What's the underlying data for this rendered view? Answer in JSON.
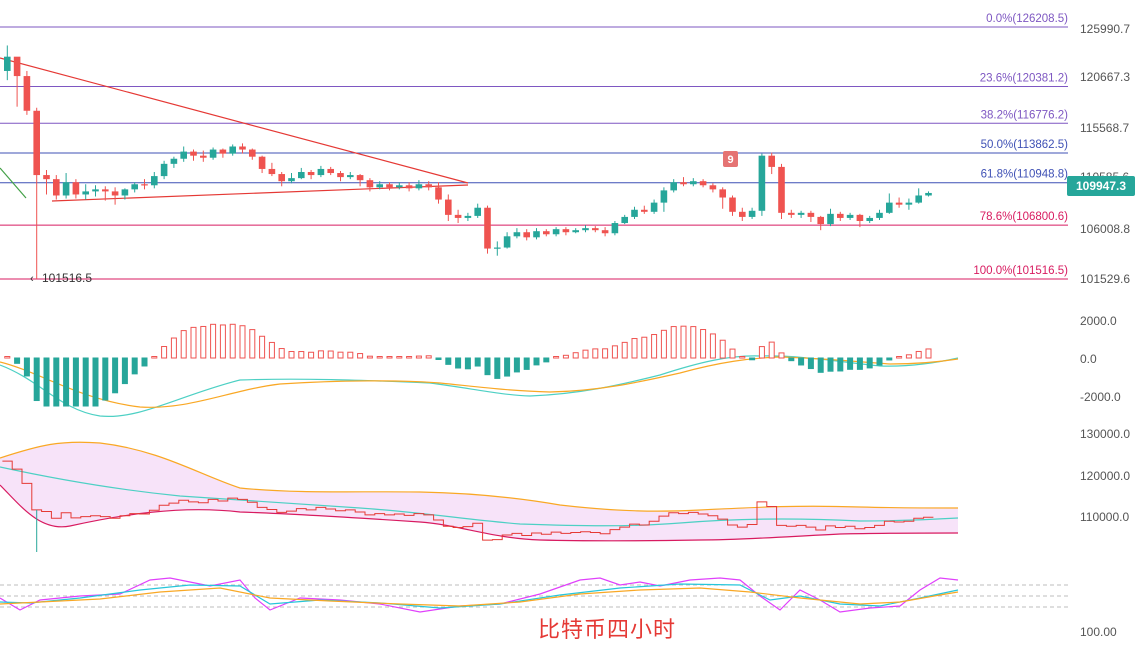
{
  "chart_data": {
    "type": "candlestick",
    "title": "比特币四小时",
    "current_price": "109947.3",
    "low_annotation": "101516.5",
    "td_signal_label": "9",
    "price_axis_labels": [
      "125990.7",
      "120667.3",
      "115568.7",
      "110585.6",
      "106008.8",
      "101529.6"
    ],
    "macd_axis_labels": [
      "2000.0",
      "0.0",
      "-2000.0"
    ],
    "boll_axis_labels": [
      "130000.0",
      "120000.0",
      "110000.0"
    ],
    "kdj_axis_labels": [
      "100.00"
    ],
    "fibonacci": [
      {
        "label": "0.0%(126208.5)",
        "price": 126208.5,
        "color": "#7e57c2"
      },
      {
        "label": "23.6%(120381.2)",
        "price": 120381.2,
        "color": "#7e57c2"
      },
      {
        "label": "38.2%(116776.2)",
        "price": 116776.2,
        "color": "#7e57c2"
      },
      {
        "label": "50.0%(113862.5)",
        "price": 113862.5,
        "color": "#3f51b5"
      },
      {
        "label": "61.8%(110948.8)",
        "price": 110948.8,
        "color": "#3f51b5"
      },
      {
        "label": "78.6%(106800.6)",
        "price": 106800.6,
        "color": "#d81b60"
      },
      {
        "label": "100.0%(101516.5)",
        "price": 101516.5,
        "color": "#d81b60"
      }
    ],
    "candles": [
      [
        121900,
        123300,
        124400,
        121000
      ],
      [
        123300,
        121400,
        122300,
        118400
      ],
      [
        121400,
        118000,
        121900,
        117600
      ],
      [
        118000,
        111700,
        118300,
        101516.5
      ],
      [
        111700,
        111300,
        112200,
        109800
      ],
      [
        111300,
        109700,
        111700,
        109300
      ],
      [
        109700,
        111000,
        111900,
        109400
      ],
      [
        111000,
        109800,
        111300,
        109400
      ],
      [
        109800,
        110100,
        110800,
        109300
      ],
      [
        110100,
        110300,
        110700,
        109600
      ],
      [
        110300,
        110100,
        110600,
        109200
      ],
      [
        110100,
        109700,
        110500,
        108800
      ],
      [
        109700,
        110300,
        110400,
        109300
      ],
      [
        110300,
        110800,
        111000,
        110000
      ],
      [
        110800,
        110700,
        111300,
        110300
      ],
      [
        110700,
        111600,
        112000,
        110400
      ],
      [
        111600,
        112800,
        113100,
        111300
      ],
      [
        112800,
        113300,
        113500,
        112400
      ],
      [
        113300,
        114000,
        114500,
        113000
      ],
      [
        114000,
        113600,
        114200,
        113100
      ],
      [
        113600,
        113400,
        114100,
        113000
      ],
      [
        113400,
        114200,
        114400,
        113200
      ],
      [
        114200,
        113800,
        114300,
        113400
      ],
      [
        113800,
        114500,
        114700,
        113600
      ],
      [
        114500,
        114200,
        114800,
        113800
      ],
      [
        114200,
        113500,
        114300,
        113200
      ],
      [
        113500,
        112300,
        113600,
        111900
      ],
      [
        112300,
        111800,
        112900,
        111600
      ],
      [
        111800,
        111100,
        112000,
        110600
      ],
      [
        111100,
        111400,
        111900,
        110900
      ],
      [
        111400,
        112000,
        112400,
        111300
      ],
      [
        112000,
        111700,
        112200,
        111300
      ],
      [
        111700,
        112300,
        112600,
        111500
      ],
      [
        112300,
        111900,
        112500,
        111700
      ],
      [
        111900,
        111500,
        112100,
        111100
      ],
      [
        111500,
        111700,
        112000,
        111300
      ],
      [
        111700,
        111200,
        111800,
        110600
      ],
      [
        111200,
        110500,
        111400,
        110100
      ],
      [
        110500,
        110800,
        111100,
        110300
      ],
      [
        110800,
        110500,
        111000,
        110200
      ],
      [
        110500,
        110700,
        111000,
        110300
      ],
      [
        110700,
        110400,
        111000,
        110100
      ],
      [
        110400,
        110800,
        111200,
        110200
      ],
      [
        110800,
        110500,
        111100,
        110200
      ],
      [
        110500,
        109300,
        111000,
        108900
      ],
      [
        109300,
        107800,
        109800,
        107200
      ],
      [
        107800,
        107500,
        108300,
        107000
      ],
      [
        107500,
        107700,
        108000,
        107200
      ],
      [
        107700,
        108500,
        108900,
        107500
      ],
      [
        108500,
        104500,
        108700,
        104000
      ],
      [
        104500,
        104600,
        105200,
        103800
      ],
      [
        104600,
        105700,
        106100,
        104500
      ],
      [
        105700,
        106100,
        106500,
        105500
      ],
      [
        106100,
        105600,
        106400,
        105300
      ],
      [
        105600,
        106200,
        106500,
        105400
      ],
      [
        106200,
        105900,
        106400,
        105700
      ],
      [
        105900,
        106400,
        106600,
        105700
      ],
      [
        106400,
        106100,
        106600,
        105800
      ],
      [
        106100,
        106300,
        106500,
        106000
      ],
      [
        106300,
        106500,
        106800,
        106100
      ],
      [
        106500,
        106300,
        106700,
        106100
      ],
      [
        106300,
        106000,
        106600,
        105700
      ],
      [
        106000,
        107000,
        107200,
        105800
      ],
      [
        107000,
        107600,
        107800,
        106900
      ],
      [
        107600,
        108300,
        108600,
        107400
      ],
      [
        108300,
        108100,
        108700,
        107900
      ],
      [
        108100,
        109000,
        109300,
        107900
      ],
      [
        109000,
        110200,
        110500,
        108100
      ],
      [
        110200,
        111000,
        111300,
        110000
      ],
      [
        111000,
        110800,
        111500,
        110600
      ],
      [
        110800,
        111100,
        111400,
        110600
      ],
      [
        111100,
        110700,
        111300,
        110500
      ],
      [
        110700,
        110300,
        110900,
        110000
      ],
      [
        110300,
        109500,
        110500,
        108400
      ],
      [
        109500,
        108100,
        109700,
        107700
      ],
      [
        108100,
        107600,
        108500,
        107200
      ],
      [
        107600,
        108200,
        108500,
        107400
      ],
      [
        108200,
        113600,
        113800,
        107700
      ],
      [
        113600,
        112500,
        113900,
        111800
      ],
      [
        112500,
        108000,
        112800,
        107400
      ],
      [
        108000,
        107800,
        108300,
        107500
      ],
      [
        107800,
        108000,
        108200,
        107500
      ],
      [
        108000,
        107600,
        108200,
        107100
      ],
      [
        107600,
        106900,
        107700,
        106300
      ],
      [
        106900,
        107900,
        108400,
        106700
      ],
      [
        107900,
        107500,
        108100,
        107200
      ],
      [
        107500,
        107800,
        108000,
        107300
      ],
      [
        107800,
        107200,
        107900,
        106600
      ],
      [
        107200,
        107500,
        107700,
        107000
      ],
      [
        107500,
        108000,
        108300,
        107300
      ],
      [
        108000,
        109000,
        109900,
        107900
      ],
      [
        109000,
        108800,
        109500,
        108500
      ],
      [
        108800,
        109000,
        109400,
        108300
      ],
      [
        109000,
        109700,
        110400,
        108900
      ],
      [
        109700,
        109947.3,
        110100,
        109600
      ]
    ]
  }
}
